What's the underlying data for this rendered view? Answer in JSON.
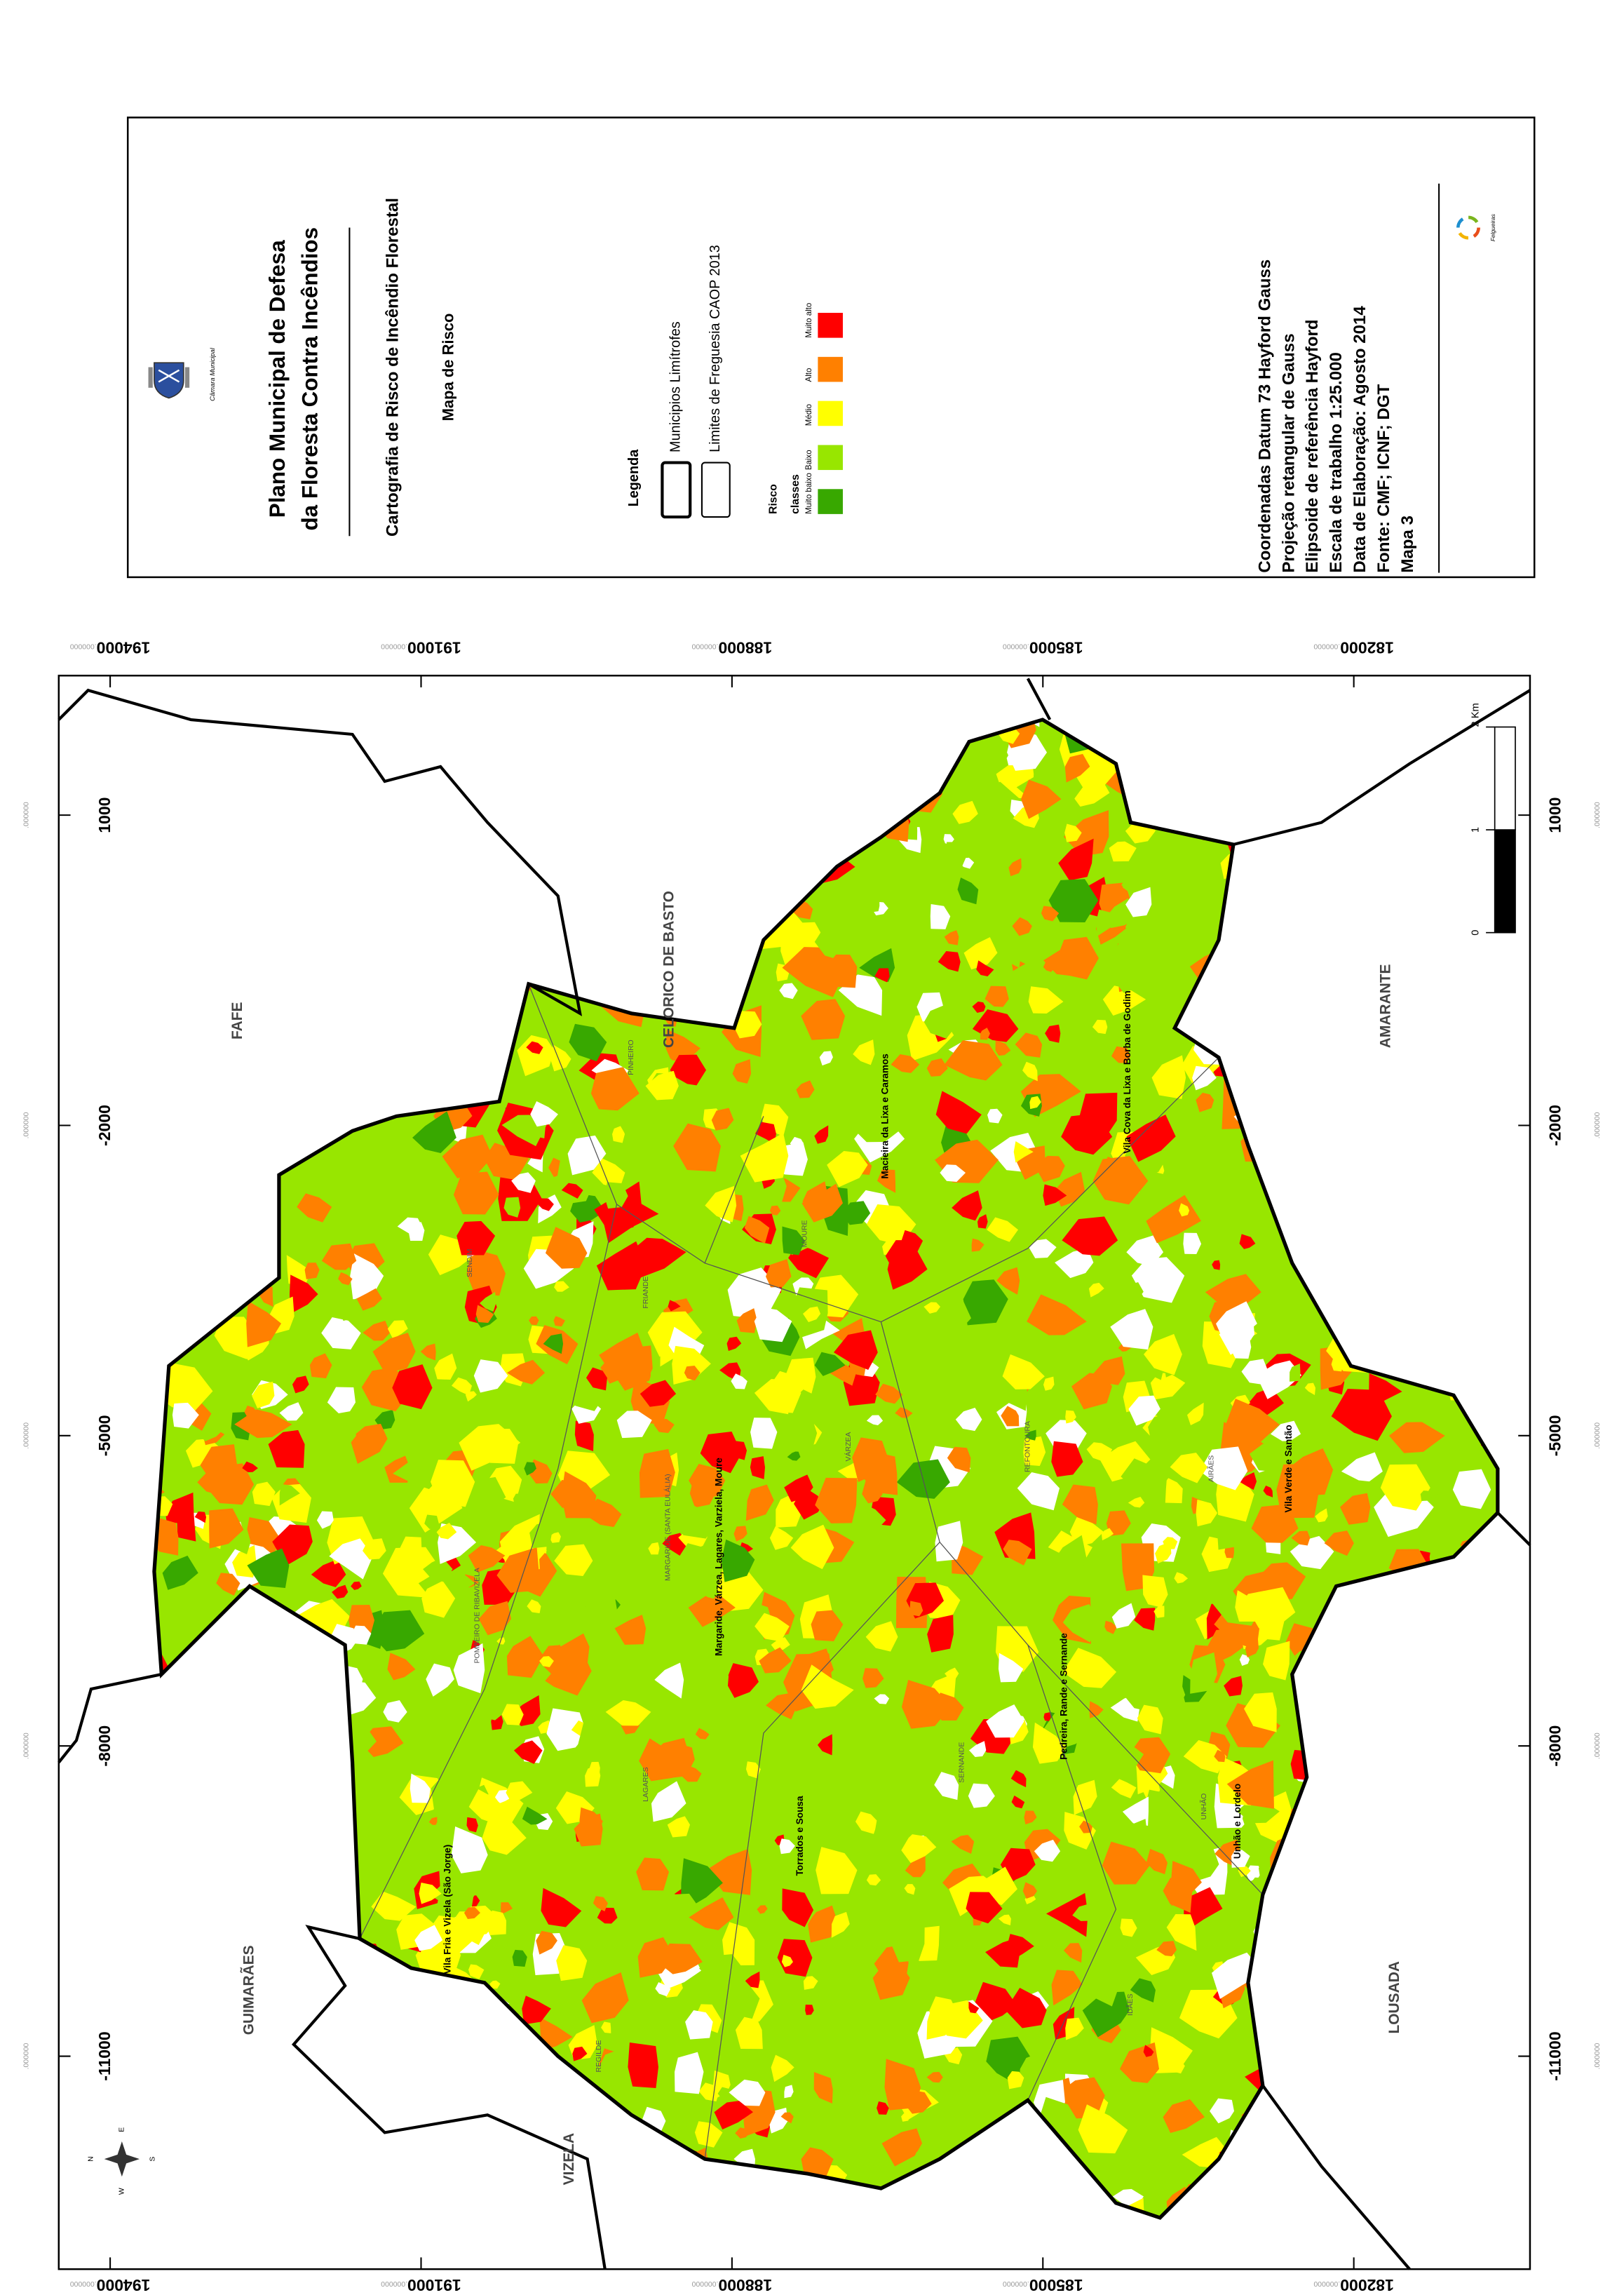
{
  "header": {
    "title_lines": [
      "Plano Municipal de Defesa",
      "da Floresta Contra Incêndios"
    ],
    "emblem_caption": "Câmara Municipal",
    "subtitle": "Cartografia de Risco de Incêndio Florestal",
    "map_name": "Mapa de Risco"
  },
  "legend": {
    "title": "Legenda",
    "boundaries": [
      {
        "label": "Municipios Limítrofes"
      },
      {
        "label": "Limites de Freguesia CAOP 2013"
      }
    ],
    "risk_title": "Risco",
    "risk_subtitle": "classes",
    "classes": [
      {
        "label": "Muito baixo",
        "color": "#38a800"
      },
      {
        "label": "Baixo",
        "color": "#98e600"
      },
      {
        "label": "Médio",
        "color": "#ffff00"
      },
      {
        "label": "Alto",
        "color": "#ff8000"
      },
      {
        "label": "Muito alto",
        "color": "#ff0000"
      }
    ]
  },
  "metadata": [
    "Coordenadas Datum 73 Hayford Gauss",
    "Projeção retangular de Gauss",
    "Elipsoide de referência Hayford",
    "Escala de trabalho 1:25.000",
    "Data de Elaboração: Agosto 2014",
    "Fonte: CMF; ICNF; DGT",
    "Mapa 3"
  ],
  "logo_text": "Felgueiras",
  "map": {
    "easting_ticks": [
      -11000,
      -8000,
      -5000,
      -2000,
      1000
    ],
    "northing_ticks": [
      194000,
      191000,
      188000,
      185000,
      182000
    ],
    "tick_suffix": ".000000",
    "neighbors": [
      "FAFE",
      "CELORICO DE BASTO",
      "AMARANTE",
      "LOUSADA",
      "VIZELA",
      "GUIMARÃES"
    ],
    "parishes": [
      "Margaride, Várzea, Lagares, Varziela, Moure",
      "Macieira da Lixa e Caramos",
      "Vila Cova da Lixa e Borba de Godim",
      "Vila Verde e Santão",
      "Pedreira, Rande e Sernande",
      "Torrados e Sousa",
      "Unhão e Lordelo",
      "Vila Fria e Vizela (São Jorge)"
    ],
    "parish_codes": [
      "SENDIM",
      "FRIANDE",
      "MOURE",
      "VÁRZEA",
      "REGILDE",
      "LAGARES",
      "PINHEIRO",
      "AIRÃES",
      "REFONTOURA",
      "IDÃES",
      "SERNANDE",
      "UNHÃO",
      "POMBEIRO DE RIBAVIZELA",
      "MARGARIDE (SANTA EULÁLIA)"
    ],
    "scale_bar": [
      0,
      1,
      {
        "value": 2,
        "label": "2 Km"
      }
    ],
    "compass": [
      "N",
      "E",
      "S",
      "W"
    ]
  }
}
